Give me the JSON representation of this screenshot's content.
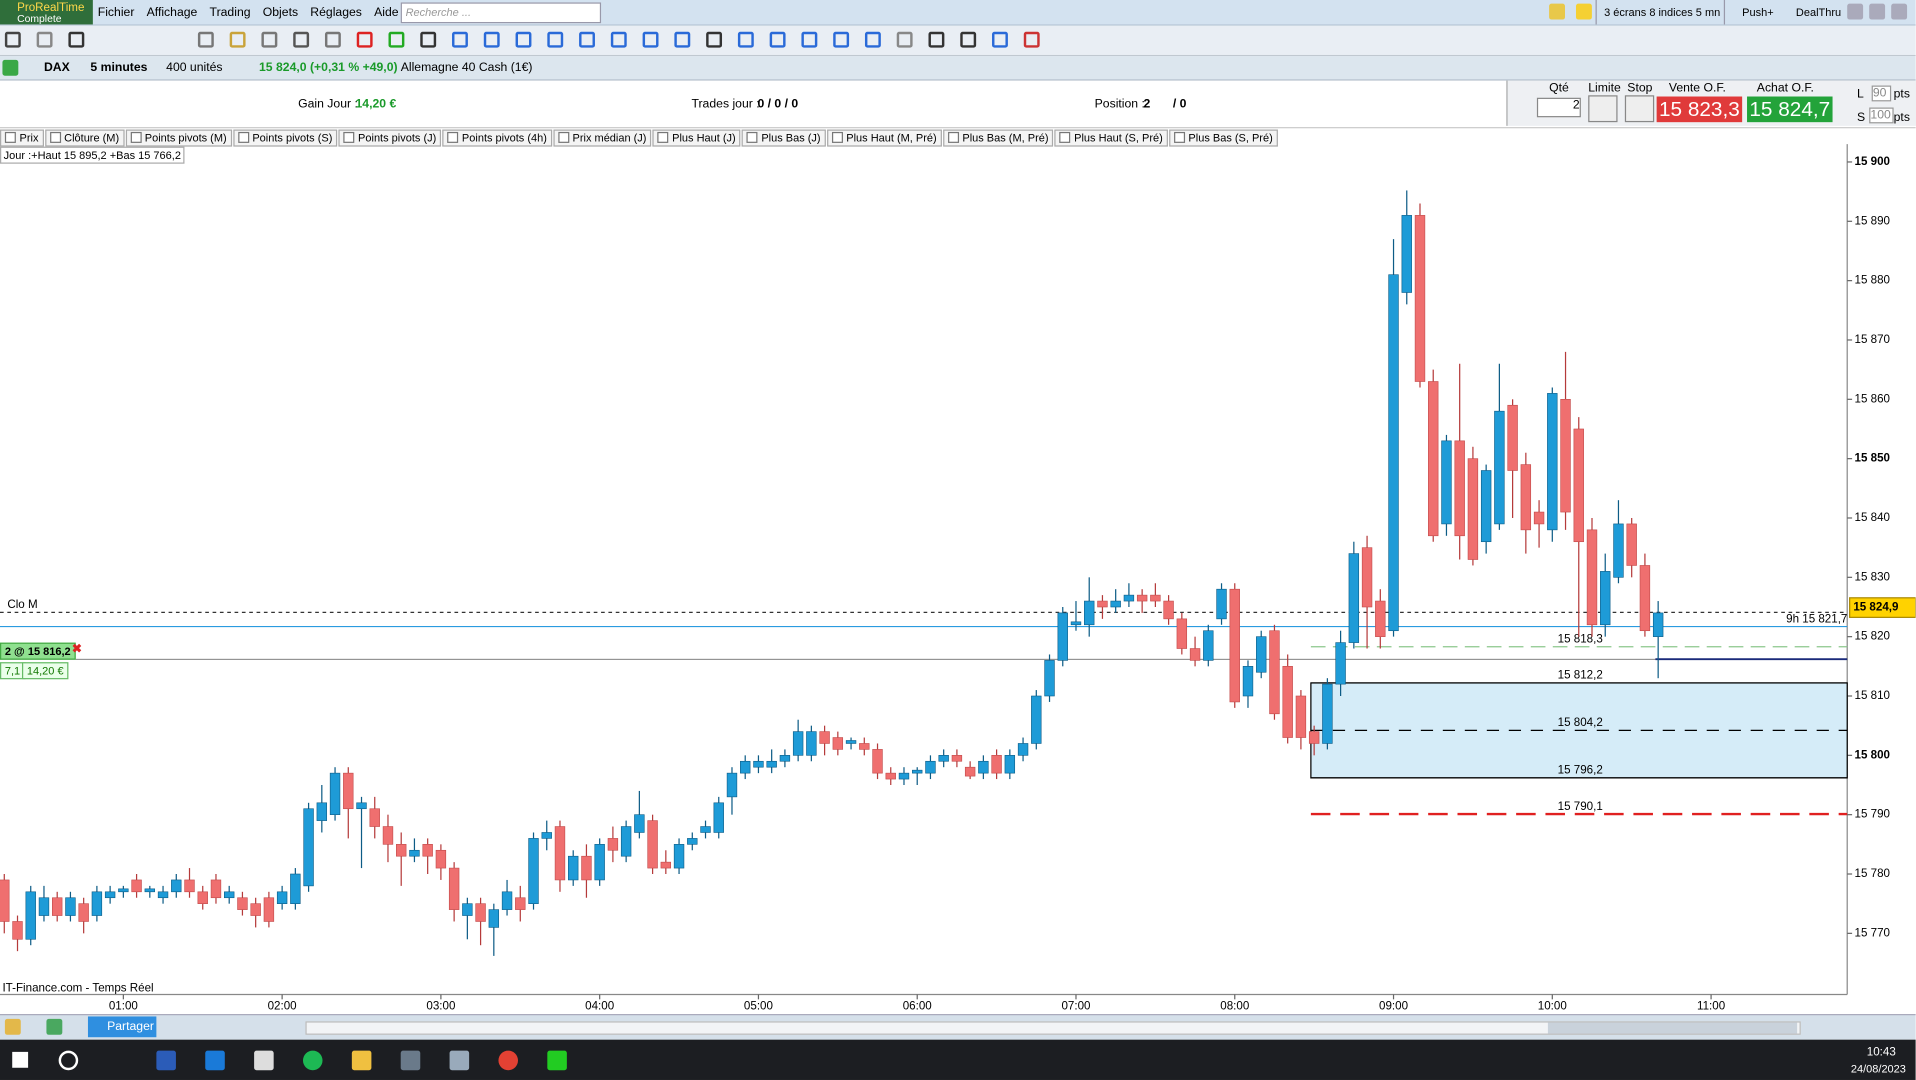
{
  "menu": {
    "app": "ProRealTime",
    "edition": "Complete",
    "items": [
      "Fichier",
      "Affichage",
      "Trading",
      "Objets",
      "Réglages",
      "Aide"
    ],
    "search": "Recherche ...",
    "workspace": "3 écrans 8 indices 5 mn",
    "push": "Push+",
    "dealthru": "DealThru"
  },
  "instrument": {
    "ticker": "DAX",
    "period": "5 minutes",
    "units": "400 unités",
    "quote": "15 824,0 (+0,31 % +49,0)",
    "name": "Allemagne 40 Cash (1€)"
  },
  "stats": {
    "gain_label": "Gain Jour :",
    "gain": "14,20 €",
    "trades_label": "Trades jour :",
    "trades": "0 / 0 / 0",
    "position_label": "Position :",
    "position": "2",
    "position_closed": "/ 0"
  },
  "order": {
    "qty_label": "Qté",
    "qty": "2",
    "limit": "Limite",
    "stop": "Stop",
    "sell_label": "Vente O.F.",
    "sell": "15 823,3",
    "buy_label": "Achat O.F.",
    "buy": "15 824,7",
    "l": "L",
    "l_pts": "90",
    "s": "S",
    "s_pts": "100",
    "pts": "pts"
  },
  "tabs": [
    "Prix",
    "Clôture (M)",
    "Points pivots (M)",
    "Points pivots (S)",
    "Points pivots (J)",
    "Points pivots (4h)",
    "Prix médian (J)",
    "Plus Haut (J)",
    "Plus Bas (J)",
    "Plus Haut (M, Pré)",
    "Plus Bas (M, Pré)",
    "Plus Haut (S, Pré)",
    "Plus Bas (S, Pré)"
  ],
  "day_range": "Jour :+Haut 15 895,2 +Bas 15 766,2",
  "position_box": {
    "pnl_pts": "7,1",
    "pnl": "14,20 €"
  },
  "source": "IT-Finance.com - Temps Réel",
  "share": "Partager",
  "clock": {
    "time": "10:43",
    "date": "24/08/2023"
  },
  "chart_data": {
    "type": "candlestick",
    "up_color": "#1e9bd7",
    "down_color": "#ef6f6f",
    "categories": [
      null,
      null,
      null,
      null,
      null,
      null,
      null,
      null,
      null,
      "01:00",
      null,
      null,
      null,
      null,
      null,
      null,
      null,
      null,
      null,
      null,
      null,
      "02:00",
      null,
      null,
      null,
      null,
      null,
      null,
      null,
      null,
      null,
      null,
      null,
      "03:00",
      null,
      null,
      null,
      null,
      null,
      null,
      null,
      null,
      null,
      null,
      null,
      "04:00",
      null,
      null,
      null,
      null,
      null,
      null,
      null,
      null,
      null,
      null,
      null,
      "05:00",
      null,
      null,
      null,
      null,
      null,
      null,
      null,
      null,
      null,
      null,
      null,
      "06:00",
      null,
      null,
      null,
      null,
      null,
      null,
      null,
      null,
      null,
      null,
      null,
      "07:00",
      null,
      null,
      null,
      null,
      null,
      null,
      null,
      null,
      null,
      null,
      null,
      "08:00",
      null,
      null,
      null,
      null,
      null,
      null,
      null,
      null,
      null,
      null,
      null,
      "09:00",
      null,
      null,
      null,
      null,
      null,
      null,
      null,
      null,
      null,
      null,
      null,
      "10:00",
      null,
      null,
      null,
      null,
      null,
      null,
      null,
      null,
      null,
      null,
      null,
      "11:00"
    ],
    "open": [
      15779,
      15772,
      15769,
      15773,
      15776,
      15773,
      15775,
      15773,
      15776,
      15777,
      15779,
      15777,
      15776,
      15777,
      15779,
      15777,
      15779,
      15776,
      15776,
      15775,
      15776,
      15775,
      15775,
      15778,
      15789,
      15790,
      15797,
      15791,
      15791,
      15788,
      15785,
      15783,
      15785,
      15784,
      15781,
      15773,
      15775,
      15771,
      15774,
      15776,
      15775,
      15786,
      15788,
      15779,
      15783,
      15779,
      15786,
      15783,
      15787,
      15789,
      15782,
      15781,
      15785,
      15787,
      15787,
      15793,
      15797,
      15798,
      15798,
      15799,
      15800,
      15800,
      15804,
      15803,
      15802,
      15802,
      15801,
      15797,
      15796,
      15797,
      15797,
      15799,
      15800,
      15798,
      15797,
      15800,
      15797,
      15800,
      15802,
      15810,
      15816,
      15822,
      15822,
      15826,
      15825,
      15826,
      15827,
      15827,
      15826,
      15823,
      15818,
      15816,
      15823,
      15828,
      15810,
      15814,
      15821,
      15815,
      15810,
      15804,
      15802,
      15812,
      15819,
      15835,
      15826,
      15821,
      15878,
      15891,
      15863,
      15839,
      15853,
      15850,
      15836,
      15839,
      15859,
      15849,
      15841,
      15838,
      15860,
      15855,
      15838,
      15822,
      15830,
      15839,
      15832,
      15820,
      null,
      null,
      null,
      null
    ],
    "high": [
      15780,
      15773,
      15778,
      15778,
      15777,
      15777,
      15776,
      15778,
      15778,
      15778,
      15780,
      15778,
      15778,
      15780,
      15781,
      15778,
      15780,
      15778,
      15777,
      15776,
      15777,
      15778,
      15781,
      15792,
      15795,
      15798,
      15798,
      15793,
      15793,
      15790,
      15787,
      15786,
      15786,
      15785,
      15782,
      15776,
      15776,
      15775,
      15779,
      15778,
      15787,
      15789,
      15789,
      15784,
      15785,
      15786,
      15788,
      15789,
      15794,
      15790,
      15784,
      15786,
      15787,
      15789,
      15793,
      15798,
      15800,
      15800,
      15801,
      15801,
      15806,
      15805,
      15805,
      15804,
      15803,
      15803,
      15802,
      15798,
      15798,
      15798,
      15800,
      15801,
      15801,
      15799,
      15800,
      15801,
      15801,
      15803,
      15811,
      15817,
      15825,
      15826,
      15830,
      15827,
      15828,
      15829,
      15828,
      15829,
      15827,
      15824,
      15820,
      15822,
      15829,
      15829,
      15816,
      15821,
      15822,
      15817,
      15811,
      15805,
      15813,
      15821,
      15836,
      15837,
      15828,
      15887,
      15895.2,
      15893,
      15865,
      15854,
      15866,
      15852,
      15849,
      15866,
      15860,
      15851,
      15843,
      15862,
      15868,
      15857,
      15840,
      15834,
      15843,
      15840,
      15834,
      15826,
      null,
      null,
      null,
      null
    ],
    "low": [
      15770,
      15767,
      15768,
      15772,
      15772,
      15772,
      15770,
      15772,
      15775,
      15776,
      15776,
      15776,
      15775,
      15776,
      15776,
      15774,
      15775,
      15775,
      15773,
      15771,
      15771,
      15774,
      15774,
      15777,
      15787,
      15789,
      15786,
      15781,
      15786,
      15782,
      15778,
      15782,
      15780,
      15779,
      15772,
      15769,
      15768,
      15766.2,
      15773,
      15772,
      15774,
      15784,
      15777,
      15778,
      15776,
      15778,
      15782,
      15782,
      15786,
      15780,
      15780,
      15780,
      15784,
      15786,
      15786,
      15790,
      15796,
      15797,
      15797,
      15798,
      15799,
      15799,
      15800,
      15800,
      15801,
      15800,
      15796,
      15795,
      15795,
      15795,
      15796,
      15798,
      15798,
      15796,
      15796,
      15796,
      15796,
      15799,
      15801,
      15809,
      15815,
      15821,
      15820,
      15823,
      15824,
      15825,
      15824,
      15825,
      15822,
      15817,
      15815,
      15815,
      15822,
      15808,
      15808,
      15813,
      15806,
      15802,
      15801,
      15800,
      15801,
      15810,
      15818,
      15818,
      15818,
      15820,
      15876,
      15862,
      15836,
      15837,
      15833,
      15832,
      15834,
      15838,
      15840,
      15834,
      15835,
      15836,
      15838,
      15820,
      15820,
      15820,
      15829,
      15830,
      15820,
      15813,
      null,
      null,
      null,
      null
    ],
    "close": [
      15772,
      15769,
      15777,
      15776,
      15773,
      15776,
      15772,
      15777,
      15777,
      15777.5,
      15777,
      15777.5,
      15777,
      15779,
      15777,
      15775,
      15776,
      15777,
      15774,
      15773,
      15772,
      15777,
      15780,
      15791,
      15792,
      15797,
      15791,
      15792,
      15788,
      15785,
      15783,
      15784,
      15783,
      15781,
      15774,
      15775,
      15772,
      15774,
      15777,
      15774,
      15786,
      15787,
      15779,
      15783,
      15779,
      15785,
      15784,
      15788,
      15790,
      15781,
      15781,
      15785,
      15786,
      15788,
      15792,
      15797,
      15799,
      15799,
      15799,
      15800,
      15804,
      15804,
      15802,
      15801,
      15802.5,
      15801,
      15797,
      15796,
      15797,
      15797.5,
      15799,
      15800,
      15799,
      15796.5,
      15799,
      15797,
      15800,
      15802,
      15810,
      15816,
      15824,
      15822.5,
      15826,
      15825,
      15826,
      15827,
      15826,
      15826,
      15823,
      15818,
      15816,
      15821,
      15828,
      15809,
      15815,
      15820,
      15807,
      15803,
      15803,
      15802,
      15812,
      15819,
      15834,
      15825,
      15820,
      15881,
      15891,
      15863,
      15837,
      15853,
      15837,
      15833,
      15848,
      15858,
      15848,
      15838,
      15839,
      15861,
      15841,
      15836,
      15822,
      15831,
      15839,
      15832,
      15821,
      15824,
      null,
      null,
      null,
      null
    ],
    "ylim": [
      15759.7,
      15903
    ],
    "yticks": [
      {
        "value": 15770,
        "label": "15 770"
      },
      {
        "value": 15780,
        "label": "15 780"
      },
      {
        "value": 15790,
        "label": "15 790"
      },
      {
        "value": 15800,
        "label": "15 800"
      },
      {
        "value": 15810,
        "label": "15 810"
      },
      {
        "value": 15820,
        "label": "15 820"
      },
      {
        "value": 15830,
        "label": "15 830"
      },
      {
        "value": 15840,
        "label": "15 840"
      },
      {
        "value": 15850,
        "label": "15 850"
      },
      {
        "value": 15860,
        "label": "15 860"
      },
      {
        "value": 15870,
        "label": "15 870"
      },
      {
        "value": 15880,
        "label": "15 880"
      },
      {
        "value": 15890,
        "label": "15 890"
      },
      {
        "value": 15900,
        "label": "15 900"
      }
    ],
    "levels": [
      {
        "value": 15824.1,
        "label": "Clo M",
        "color": "#333333",
        "dash": "3,3"
      },
      {
        "value": 15821.7,
        "label": "9h 15 821,7",
        "color": "#2a9be0",
        "dash": "none"
      },
      {
        "value": 15818.3,
        "label": "15 818,3",
        "color": "#8cc88c",
        "dash": "12,6"
      },
      {
        "value": 15812.2,
        "label": "15 812,2",
        "color": "#000000",
        "dash": "none"
      },
      {
        "value": 15804.2,
        "label": "15 804,2",
        "color": "#000000",
        "dash": "10,8"
      },
      {
        "value": 15796.2,
        "label": "15 796,2",
        "color": "#000000",
        "dash": "none"
      },
      {
        "value": 15790.1,
        "label": "15 790,1",
        "color": "#e02020",
        "dash": "16,8"
      }
    ],
    "zone_color": "#d5ecf8",
    "position": {
      "value": 15816.2,
      "label": "2 @ 15 816,2"
    },
    "price_tag": {
      "value": 15824.9,
      "label": "15 824,9"
    }
  }
}
